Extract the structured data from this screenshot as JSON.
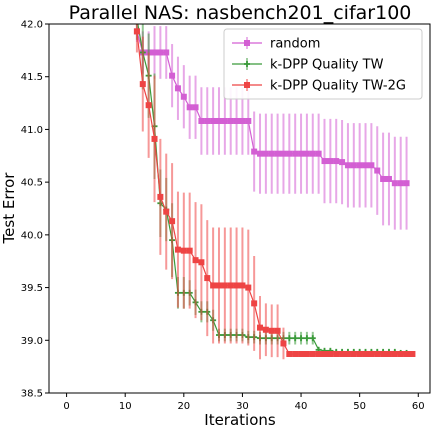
{
  "chart_data": {
    "type": "line",
    "title": "Parallel NAS: nasbench201_cifar100",
    "xlabel": "Iterations",
    "ylabel": "Test Error",
    "xlim": [
      -3,
      62
    ],
    "ylim": [
      38.5,
      42.0
    ],
    "xticks": [
      "0",
      "10",
      "20",
      "30",
      "40",
      "50",
      "60"
    ],
    "yticks": [
      "38.5",
      "39.0",
      "39.5",
      "40.0",
      "40.5",
      "41.0",
      "41.5",
      "42.0"
    ],
    "grid": false,
    "legend_position": "top-right",
    "series": [
      {
        "name": "random",
        "color": "#d35fd3",
        "marker": "square",
        "x": [
          12,
          13,
          14,
          15,
          16,
          17,
          18,
          19,
          20,
          21,
          22,
          23,
          24,
          25,
          26,
          27,
          28,
          29,
          30,
          31,
          32,
          33,
          34,
          35,
          36,
          37,
          38,
          39,
          40,
          41,
          42,
          43,
          44,
          45,
          46,
          47,
          48,
          49,
          50,
          51,
          52,
          53,
          54,
          55,
          56,
          57,
          58
        ],
        "y": [
          41.93,
          41.73,
          41.73,
          41.73,
          41.73,
          41.73,
          41.51,
          41.39,
          41.31,
          41.21,
          41.21,
          41.08,
          41.08,
          41.08,
          41.08,
          41.08,
          41.08,
          41.08,
          41.08,
          41.08,
          40.79,
          40.77,
          40.77,
          40.77,
          40.77,
          40.77,
          40.77,
          40.77,
          40.77,
          40.77,
          40.77,
          40.77,
          40.7,
          40.7,
          40.7,
          40.69,
          40.66,
          40.66,
          40.66,
          40.66,
          40.66,
          40.61,
          40.53,
          40.53,
          40.49,
          40.49,
          40.49
        ],
        "err": [
          0.1,
          0.2,
          0.2,
          0.25,
          0.25,
          0.25,
          0.3,
          0.3,
          0.3,
          0.3,
          0.3,
          0.32,
          0.32,
          0.32,
          0.32,
          0.32,
          0.32,
          0.32,
          0.32,
          0.32,
          0.38,
          0.38,
          0.38,
          0.38,
          0.38,
          0.38,
          0.38,
          0.38,
          0.38,
          0.38,
          0.38,
          0.38,
          0.4,
          0.4,
          0.4,
          0.4,
          0.4,
          0.4,
          0.4,
          0.4,
          0.4,
          0.42,
          0.44,
          0.44,
          0.44,
          0.44,
          0.44
        ]
      },
      {
        "name": "k-DPP Quality TW",
        "color": "#3a9a3a",
        "marker": "plus",
        "x": [
          12,
          13,
          14,
          15,
          16,
          17,
          18,
          19,
          20,
          21,
          22,
          23,
          24,
          25,
          26,
          27,
          28,
          29,
          30,
          31,
          32,
          33,
          34,
          35,
          36,
          37,
          38,
          39,
          40,
          41,
          42,
          43,
          44,
          45,
          46,
          47,
          48,
          49,
          50,
          51,
          52,
          53,
          54,
          55,
          56,
          57,
          58
        ],
        "y": [
          42.05,
          41.73,
          41.51,
          41.03,
          40.3,
          40.24,
          39.95,
          39.45,
          39.45,
          39.45,
          39.36,
          39.27,
          39.27,
          39.19,
          39.05,
          39.05,
          39.05,
          39.05,
          39.05,
          39.03,
          39.03,
          39.02,
          39.02,
          39.02,
          39.02,
          39.02,
          39.02,
          39.02,
          39.02,
          39.02,
          39.02,
          38.91,
          38.9,
          38.9,
          38.89,
          38.89,
          38.89,
          38.89,
          38.89,
          38.89,
          38.89,
          38.89,
          38.89,
          38.89,
          38.89,
          38.88,
          38.88
        ],
        "err": [
          0.2,
          0.35,
          0.4,
          0.5,
          0.32,
          0.3,
          0.35,
          0.15,
          0.15,
          0.12,
          0.12,
          0.1,
          0.1,
          0.1,
          0.06,
          0.06,
          0.06,
          0.06,
          0.06,
          0.06,
          0.06,
          0.06,
          0.06,
          0.06,
          0.06,
          0.06,
          0.06,
          0.06,
          0.06,
          0.06,
          0.06,
          0.02,
          0.02,
          0.02,
          0.02,
          0.02,
          0.02,
          0.02,
          0.02,
          0.02,
          0.02,
          0.02,
          0.02,
          0.02,
          0.02,
          0.02,
          0.02
        ]
      },
      {
        "name": "k-DPP Quality TW-2G",
        "color": "#ee4444",
        "marker": "square",
        "x": [
          12,
          13,
          14,
          15,
          16,
          17,
          18,
          19,
          20,
          21,
          22,
          23,
          24,
          25,
          26,
          27,
          28,
          29,
          30,
          31,
          32,
          33,
          34,
          35,
          36,
          37,
          38,
          39,
          40,
          41,
          42,
          43,
          44,
          45,
          46,
          47,
          48,
          49,
          50,
          51,
          52,
          53,
          54,
          55,
          56,
          57,
          58,
          59
        ],
        "y": [
          41.93,
          41.43,
          41.23,
          40.91,
          40.36,
          40.22,
          40.13,
          39.86,
          39.85,
          39.85,
          39.76,
          39.74,
          39.59,
          39.52,
          39.52,
          39.52,
          39.52,
          39.52,
          39.52,
          39.5,
          39.35,
          39.12,
          39.1,
          39.09,
          39.09,
          38.97,
          38.87,
          38.87,
          38.87,
          38.87,
          38.87,
          38.87,
          38.87,
          38.87,
          38.87,
          38.87,
          38.87,
          38.87,
          38.87,
          38.87,
          38.87,
          38.87,
          38.87,
          38.87,
          38.87,
          38.87,
          38.87,
          38.87
        ],
        "err": [
          0.2,
          0.45,
          0.5,
          0.6,
          0.55,
          0.55,
          0.55,
          0.55,
          0.55,
          0.55,
          0.55,
          0.55,
          0.55,
          0.55,
          0.55,
          0.55,
          0.55,
          0.55,
          0.55,
          0.55,
          0.45,
          0.3,
          0.25,
          0.25,
          0.25,
          0.15,
          0.02,
          0.02,
          0.02,
          0.02,
          0.02,
          0.02,
          0.02,
          0.02,
          0.02,
          0.02,
          0.02,
          0.02,
          0.02,
          0.02,
          0.02,
          0.02,
          0.02,
          0.02,
          0.02,
          0.02,
          0.02,
          0.02
        ]
      }
    ]
  }
}
